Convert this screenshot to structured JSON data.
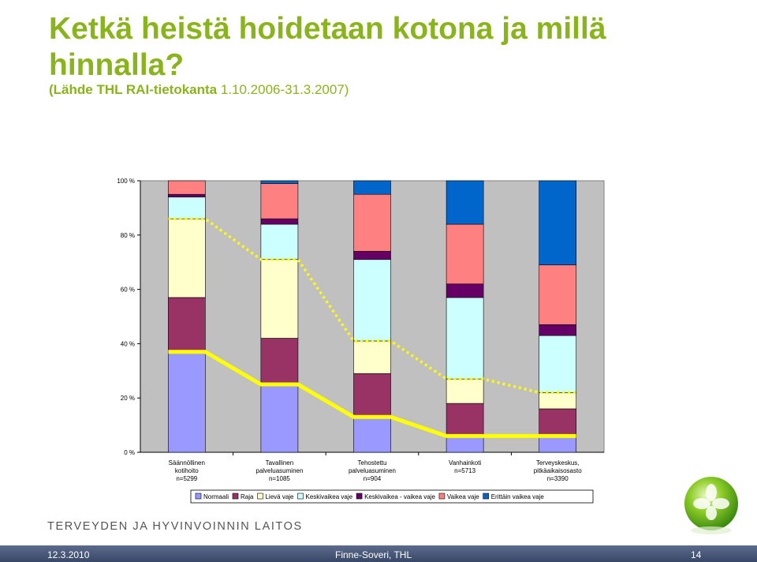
{
  "slide": {
    "title": "Ketkä heistä hoidetaan kotona ja millä hinnalla?",
    "source_prefix": "(Lähde THL RAI-tietokanta",
    "source_dates": " 1.10.2006-31.3.2007)",
    "organization": "TERVEYDEN JA HYVINVOINNIN LAITOS",
    "footer_date": "12.3.2010",
    "footer_author": "Finne-Soveri, THL",
    "footer_page": "14",
    "brand_color": "#8ab41c"
  },
  "chart_data": {
    "type": "bar",
    "stacked": true,
    "ylim": [
      0,
      100
    ],
    "yticks": [
      "0 %",
      "20 %",
      "40 %",
      "60 %",
      "80 %",
      "100 %"
    ],
    "categories": [
      [
        "Säännöllinen",
        "kotihoito",
        "n=5299"
      ],
      [
        "Tavallinen",
        "palveluasuminen",
        "n=1085"
      ],
      [
        "Tehostettu",
        "palveluasuminen",
        "n=904"
      ],
      [
        "Vanhainkoti",
        "n=5713"
      ],
      [
        "Terveyskeskus,",
        "pitkäaikaisosasto",
        "n=3390"
      ]
    ],
    "series": [
      {
        "name": "Normaali",
        "color": "#9999ff",
        "values": [
          37,
          25,
          13,
          6,
          6
        ]
      },
      {
        "name": "Raja",
        "color": "#993366",
        "values": [
          20,
          17,
          16,
          12,
          10
        ]
      },
      {
        "name": "Lievä vaje",
        "color": "#ffffcc",
        "values": [
          29,
          29,
          12,
          9,
          6
        ]
      },
      {
        "name": "Keskivaikea vaje",
        "color": "#ccffff",
        "values": [
          8,
          13,
          30,
          30,
          21
        ]
      },
      {
        "name": "Keskivaikea - vaikea vaje",
        "color": "#660066",
        "values": [
          1,
          2,
          3,
          5,
          4
        ]
      },
      {
        "name": "Vaikea vaje",
        "color": "#ff8080",
        "values": [
          5,
          13,
          21,
          22,
          22
        ]
      },
      {
        "name": "Erittäin vaikea vaje",
        "color": "#0066cc",
        "values": [
          0,
          1,
          5,
          16,
          31
        ]
      }
    ],
    "overlay_lines": [
      {
        "style": "solid",
        "color": "#ffff00",
        "values": [
          37,
          25,
          13,
          6,
          6
        ]
      },
      {
        "style": "dotted",
        "color": "#ffff00",
        "values": [
          86,
          71,
          41,
          27,
          22
        ]
      }
    ],
    "plot_background": "#c0c0c0",
    "legend_position": "bottom"
  }
}
